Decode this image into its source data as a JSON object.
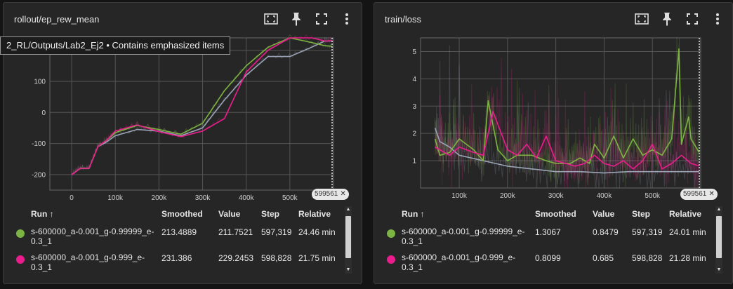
{
  "colors": {
    "green": "#7cb342",
    "pink": "#e91e8c",
    "gray": "#9aa3b5",
    "bg": "#262626"
  },
  "tooltip": "2_RL/Outputs/Lab2_Ej2 • Contains emphasized items",
  "panels": [
    {
      "title": "rollout/ep_rew_mean",
      "tool_icons": [
        "fit-domain-icon",
        "pin-icon",
        "fullscreen-icon",
        "more-vert-icon"
      ],
      "step_chip": "599561",
      "table": {
        "headers": {
          "run": "Run ↑",
          "smoothed": "Smoothed",
          "value": "Value",
          "step": "Step",
          "relative": "Relative"
        },
        "rows": [
          {
            "color": "green",
            "run_line1": "s-600000_a-0.001_g-0.99999_e-",
            "run_line2": "0.3_1",
            "smoothed": "213.4889",
            "value": "211.7521",
            "step": "597,319",
            "relative": "24.46 min"
          },
          {
            "color": "pink",
            "run_line1": "s-600000_a-0.001_g-0.999_e-",
            "run_line2": "0.3_1",
            "smoothed": "231.386",
            "value": "229.2453",
            "step": "598,828",
            "relative": "21.75 min"
          }
        ]
      }
    },
    {
      "title": "train/loss",
      "tool_icons": [
        "fit-domain-icon",
        "pin-icon",
        "fullscreen-icon",
        "more-vert-icon"
      ],
      "step_chip": "599561",
      "table": {
        "headers": {
          "run": "Run ↑",
          "smoothed": "Smoothed",
          "value": "Value",
          "step": "Step",
          "relative": "Relative"
        },
        "rows": [
          {
            "color": "green",
            "run_line1": "s-600000_a-0.001_g-0.99999_e-",
            "run_line2": "0.3_1",
            "smoothed": "1.3067",
            "value": "0.8479",
            "step": "597,319",
            "relative": "24.01 min"
          },
          {
            "color": "pink",
            "run_line1": "s-600000_a-0.001_g-0.999_e-",
            "run_line2": "0.3_1",
            "smoothed": "0.8099",
            "value": "0.685",
            "step": "598,828",
            "relative": "21.28 min"
          }
        ]
      }
    }
  ],
  "chart_data": [
    {
      "type": "line",
      "title": "rollout/ep_rew_mean",
      "xticks": [
        "0",
        "100k",
        "200k",
        "300k",
        "400k",
        "500k"
      ],
      "yticks": [
        "-200",
        "-100",
        "0",
        "100",
        "200"
      ],
      "xlim": [
        -50000,
        600000
      ],
      "ylim": [
        -250,
        240
      ],
      "series": [
        {
          "color": "gray",
          "x": [
            0,
            20000,
            40000,
            60000,
            80000,
            100000,
            150000,
            200000,
            250000,
            300000,
            350000,
            400000,
            450000,
            500000,
            550000,
            580000,
            597000
          ],
          "y": [
            -200,
            -180,
            -180,
            -110,
            -95,
            -75,
            -55,
            -60,
            -75,
            -50,
            40,
            120,
            180,
            180,
            210,
            230,
            230
          ]
        },
        {
          "color": "green",
          "x": [
            0,
            20000,
            40000,
            60000,
            80000,
            100000,
            150000,
            200000,
            250000,
            300000,
            350000,
            400000,
            450000,
            500000,
            550000,
            580000,
            597000
          ],
          "y": [
            -200,
            -180,
            -180,
            -110,
            -90,
            -65,
            -42,
            -55,
            -70,
            -35,
            70,
            150,
            210,
            240,
            225,
            215,
            213
          ]
        },
        {
          "color": "pink",
          "x": [
            0,
            20000,
            40000,
            60000,
            80000,
            100000,
            150000,
            200000,
            250000,
            300000,
            350000,
            400000,
            450000,
            500000,
            550000,
            580000,
            598000
          ],
          "y": [
            -200,
            -180,
            -180,
            -110,
            -90,
            -60,
            -40,
            -62,
            -78,
            -60,
            -20,
            130,
            200,
            240,
            240,
            230,
            231
          ]
        }
      ]
    },
    {
      "type": "line",
      "title": "train/loss",
      "xticks": [
        "100k",
        "200k",
        "300k",
        "400k",
        "500k"
      ],
      "yticks": [
        "1",
        "2",
        "3",
        "4",
        "5"
      ],
      "xlim": [
        20000,
        600000
      ],
      "ylim": [
        0,
        5.5
      ],
      "series": [
        {
          "color": "gray",
          "x": [
            50000,
            60000,
            80000,
            100000,
            150000,
            200000,
            250000,
            300000,
            350000,
            400000,
            450000,
            500000,
            550000,
            597000
          ],
          "y": [
            2.2,
            1.7,
            1.5,
            1.2,
            1.0,
            0.8,
            0.7,
            0.6,
            0.6,
            0.55,
            0.6,
            0.6,
            0.6,
            0.6
          ]
        },
        {
          "color": "green",
          "x": [
            50000,
            60000,
            80000,
            100000,
            130000,
            150000,
            160000,
            180000,
            200000,
            220000,
            250000,
            280000,
            300000,
            330000,
            350000,
            370000,
            380000,
            400000,
            420000,
            440000,
            460000,
            480000,
            500000,
            520000,
            540000,
            555000,
            560000,
            575000,
            580000,
            597000
          ],
          "y": [
            1.8,
            1.2,
            1.3,
            1.8,
            1.4,
            1.0,
            3.2,
            1.4,
            1.0,
            1.2,
            1.2,
            1.0,
            0.9,
            0.9,
            1.1,
            0.9,
            1.6,
            1.1,
            1.9,
            1.1,
            1.8,
            1.2,
            1.4,
            1.2,
            1.8,
            5.1,
            1.6,
            2.6,
            1.8,
            1.3
          ]
        },
        {
          "color": "pink",
          "x": [
            50000,
            60000,
            80000,
            100000,
            130000,
            150000,
            170000,
            200000,
            220000,
            240000,
            260000,
            280000,
            300000,
            320000,
            340000,
            360000,
            380000,
            400000,
            420000,
            440000,
            460000,
            480000,
            500000,
            520000,
            540000,
            560000,
            580000,
            597000
          ],
          "y": [
            1.5,
            1.4,
            1.2,
            1.5,
            1.3,
            1.2,
            2.8,
            1.4,
            1.2,
            1.6,
            1.1,
            1.9,
            1.0,
            0.9,
            0.8,
            0.9,
            1.2,
            0.9,
            0.8,
            1.0,
            0.7,
            1.0,
            1.6,
            0.7,
            0.9,
            1.2,
            0.9,
            0.81
          ]
        }
      ]
    }
  ]
}
